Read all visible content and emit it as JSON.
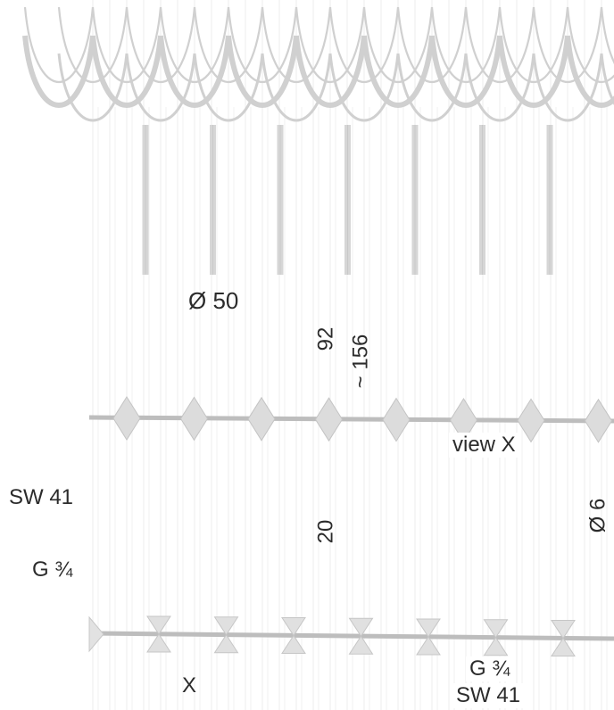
{
  "drawing": {
    "labels": {
      "diameter_50": "Ø 50",
      "dim_92": "92",
      "dim_156": "~ 156",
      "view_x": "view X",
      "sw41_left": "SW 41",
      "dim_20": "20",
      "diameter_6": "Ø 6",
      "g34_left": "G ¾",
      "x_mark": "X",
      "g34_bottom": "G ¾",
      "sw41_bottom": "SW 41"
    },
    "colors": {
      "line_light": "#d0d0d0",
      "line_mid": "#bdbdbd",
      "text": "#2b2b2b"
    }
  }
}
